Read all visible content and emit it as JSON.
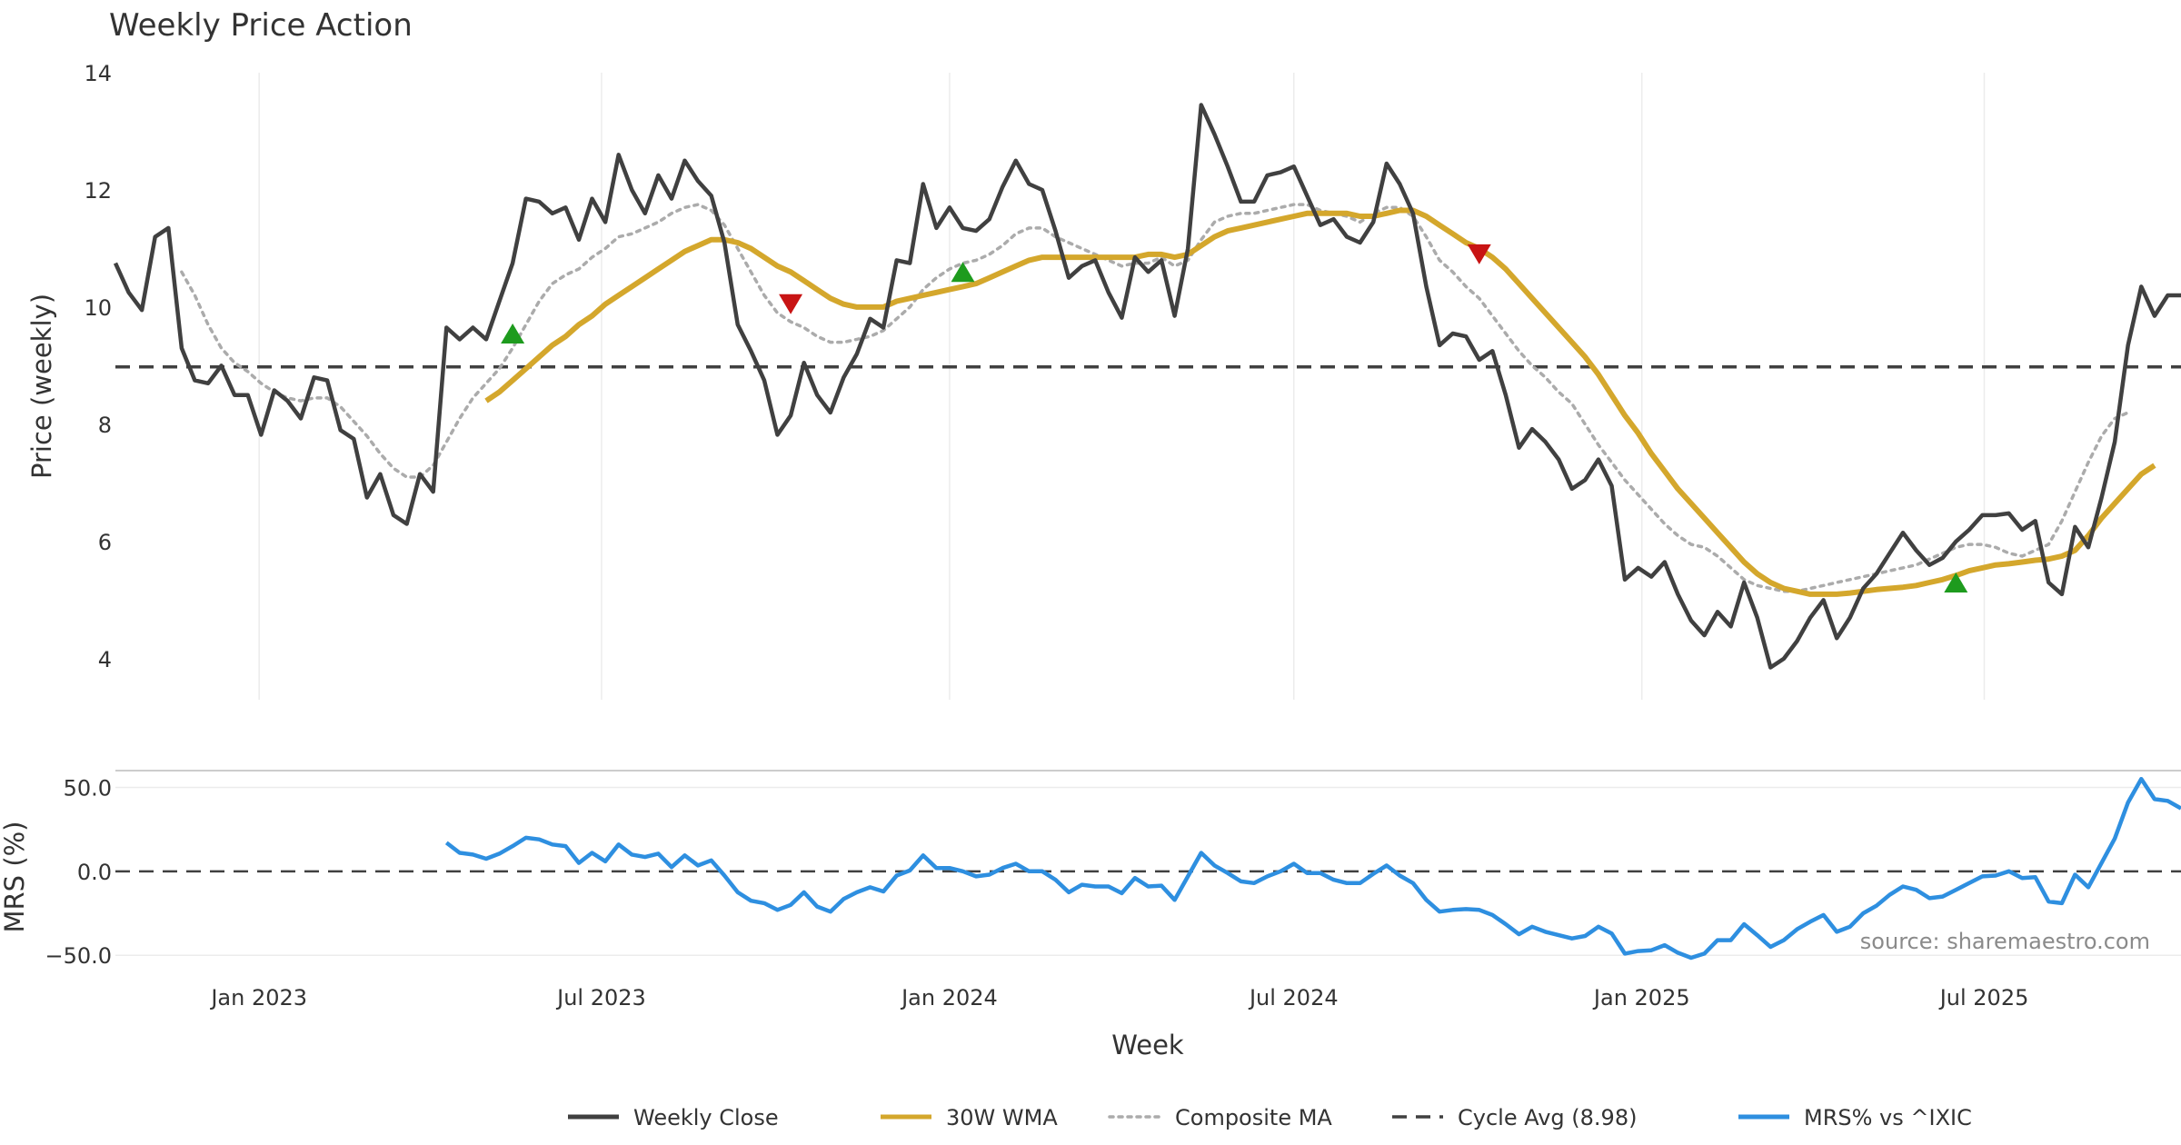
{
  "chart_data": {
    "type": "line",
    "title": "Weekly Price Action",
    "source": "source: sharemaestro.com",
    "xlabel": "Week",
    "x_ticks": [
      "Jan 2023",
      "Jul 2023",
      "Jan 2024",
      "Jul 2024",
      "Jan 2025",
      "Jul 2025"
    ],
    "x_range": [
      "2022-10-17",
      "2025-10-13"
    ],
    "price_panel": {
      "ylabel": "Price (weekly)",
      "ylim": [
        3.3,
        14
      ],
      "y_ticks": [
        4,
        6,
        8,
        10,
        12,
        14
      ],
      "cycle_avg": 8.98
    },
    "mrs_panel": {
      "ylabel": "MRS (%)",
      "ylim": [
        -58,
        60
      ],
      "y_ticks": [
        50,
        0,
        -50
      ],
      "y_tick_labels": [
        "50.0",
        "0.0",
        "−50.0"
      ]
    },
    "legend": [
      {
        "label": "Weekly Close",
        "color": "#404040",
        "style": "solid"
      },
      {
        "label": "30W WMA",
        "color": "#d4a72c",
        "style": "solid"
      },
      {
        "label": "Composite MA",
        "color": "#ababab",
        "style": "dotted"
      },
      {
        "label": "Cycle Avg (8.98)",
        "color": "#404040",
        "style": "dashed"
      },
      {
        "label": "MRS% vs ^IXIC",
        "color": "#2e8fe0",
        "style": "solid"
      }
    ],
    "series": [
      {
        "name": "Weekly Close",
        "values": [
          10.75,
          10.25,
          9.95,
          11.2,
          11.35,
          9.3,
          8.75,
          8.7,
          9.0,
          8.5,
          8.5,
          7.82,
          8.58,
          8.4,
          8.1,
          8.8,
          8.75,
          7.9,
          7.75,
          6.75,
          7.15,
          6.45,
          6.3,
          7.15,
          6.85,
          9.65,
          9.45,
          9.65,
          9.45,
          10.1,
          10.75,
          11.85,
          11.8,
          11.6,
          11.7,
          11.15,
          11.85,
          11.45,
          12.6,
          12.0,
          11.6,
          12.25,
          11.85,
          12.5,
          12.15,
          11.9,
          11.1,
          9.7,
          9.25,
          8.75,
          7.82,
          8.15,
          9.05,
          8.5,
          8.2,
          8.8,
          9.2,
          9.8,
          9.65,
          10.8,
          10.75,
          12.1,
          11.35,
          11.7,
          11.35,
          11.3,
          11.5,
          12.05,
          12.5,
          12.1,
          12.0,
          11.3,
          10.5,
          10.7,
          10.8,
          10.25,
          9.82,
          10.85,
          10.6,
          10.8,
          9.85,
          11.0,
          13.45,
          12.95,
          12.4,
          11.8,
          11.8,
          12.25,
          12.3,
          12.4,
          11.9,
          11.4,
          11.5,
          11.2,
          11.1,
          11.45,
          12.45,
          12.1,
          11.6,
          10.35,
          9.35,
          9.55,
          9.5,
          9.1,
          9.25,
          8.5,
          7.6,
          7.92,
          7.7,
          7.4,
          6.9,
          7.05,
          7.4,
          6.95,
          5.35,
          5.55,
          5.4,
          5.65,
          5.1,
          4.65,
          4.4,
          4.8,
          4.55,
          5.3,
          4.7,
          3.85,
          4.0,
          4.3,
          4.7,
          5.0,
          4.35,
          4.7,
          5.2,
          5.45,
          5.8,
          6.15,
          5.85,
          5.6,
          5.72,
          6.0,
          6.2,
          6.45,
          6.45,
          6.48,
          6.2,
          6.35,
          5.3,
          5.1,
          6.25,
          5.9,
          6.75,
          7.7,
          9.35,
          10.35,
          9.85,
          10.2,
          10.2
        ]
      },
      {
        "name": "Composite MA",
        "values": [
          null,
          null,
          null,
          null,
          null,
          10.6,
          10.2,
          9.7,
          9.3,
          9.05,
          8.9,
          8.7,
          8.55,
          8.45,
          8.4,
          8.45,
          8.45,
          8.3,
          8.05,
          7.8,
          7.5,
          7.25,
          7.1,
          7.1,
          7.3,
          7.7,
          8.1,
          8.45,
          8.7,
          8.95,
          9.3,
          9.7,
          10.1,
          10.4,
          10.55,
          10.65,
          10.85,
          11.0,
          11.2,
          11.25,
          11.35,
          11.45,
          11.6,
          11.7,
          11.75,
          11.65,
          11.4,
          11.0,
          10.6,
          10.2,
          9.9,
          9.75,
          9.65,
          9.5,
          9.4,
          9.4,
          9.45,
          9.5,
          9.6,
          9.8,
          10.0,
          10.3,
          10.5,
          10.65,
          10.75,
          10.8,
          10.9,
          11.05,
          11.25,
          11.35,
          11.35,
          11.2,
          11.1,
          11.0,
          10.9,
          10.8,
          10.7,
          10.75,
          10.75,
          10.85,
          10.7,
          10.8,
          11.15,
          11.45,
          11.55,
          11.6,
          11.6,
          11.65,
          11.7,
          11.75,
          11.75,
          11.65,
          11.6,
          11.55,
          11.45,
          11.6,
          11.7,
          11.7,
          11.55,
          11.2,
          10.8,
          10.6,
          10.35,
          10.15,
          9.85,
          9.55,
          9.25,
          9.0,
          8.8,
          8.55,
          8.35,
          8.0,
          7.65,
          7.35,
          7.05,
          6.8,
          6.55,
          6.3,
          6.1,
          5.95,
          5.9,
          5.75,
          5.55,
          5.35,
          5.25,
          5.2,
          5.15,
          5.15,
          5.2,
          5.25,
          5.3,
          5.35,
          5.4,
          5.45,
          5.5,
          5.55,
          5.6,
          5.7,
          5.8,
          5.9,
          5.95,
          5.95,
          5.9,
          5.8,
          5.75,
          5.85,
          5.95,
          6.35,
          6.85,
          7.35,
          7.8,
          8.1,
          8.2
        ]
      },
      {
        "name": "30W WMA",
        "values": [
          null,
          null,
          null,
          null,
          null,
          null,
          null,
          null,
          null,
          null,
          null,
          null,
          null,
          null,
          null,
          null,
          null,
          null,
          null,
          null,
          null,
          null,
          null,
          null,
          null,
          null,
          null,
          null,
          8.4,
          8.55,
          8.75,
          8.95,
          9.15,
          9.35,
          9.5,
          9.7,
          9.85,
          10.05,
          10.2,
          10.35,
          10.5,
          10.65,
          10.8,
          10.95,
          11.05,
          11.15,
          11.15,
          11.1,
          11.0,
          10.85,
          10.7,
          10.6,
          10.45,
          10.3,
          10.15,
          10.05,
          10.0,
          10.0,
          10.0,
          10.1,
          10.15,
          10.2,
          10.25,
          10.3,
          10.35,
          10.4,
          10.5,
          10.6,
          10.7,
          10.8,
          10.85,
          10.85,
          10.85,
          10.85,
          10.85,
          10.85,
          10.85,
          10.85,
          10.9,
          10.9,
          10.85,
          10.9,
          11.05,
          11.2,
          11.3,
          11.35,
          11.4,
          11.45,
          11.5,
          11.55,
          11.6,
          11.6,
          11.6,
          11.6,
          11.55,
          11.55,
          11.6,
          11.65,
          11.65,
          11.55,
          11.4,
          11.25,
          11.1,
          11.0,
          10.85,
          10.65,
          10.4,
          10.15,
          9.9,
          9.65,
          9.4,
          9.15,
          8.85,
          8.5,
          8.15,
          7.85,
          7.5,
          7.2,
          6.9,
          6.65,
          6.4,
          6.15,
          5.9,
          5.65,
          5.45,
          5.3,
          5.2,
          5.15,
          5.1,
          5.1,
          5.1,
          5.12,
          5.15,
          5.18,
          5.2,
          5.22,
          5.25,
          5.3,
          5.35,
          5.42,
          5.5,
          5.55,
          5.6,
          5.62,
          5.65,
          5.68,
          5.7,
          5.75,
          5.85,
          6.1,
          6.4,
          6.65,
          6.9,
          7.15,
          7.3
        ]
      },
      {
        "name": "MRS% vs ^IXIC",
        "values": [
          null,
          null,
          null,
          null,
          null,
          null,
          null,
          null,
          null,
          null,
          null,
          null,
          null,
          null,
          null,
          null,
          null,
          null,
          null,
          null,
          null,
          null,
          null,
          null,
          null,
          17,
          11,
          10,
          7.5,
          10.5,
          15,
          20,
          19,
          16,
          15,
          5,
          11,
          6,
          16,
          10,
          8.5,
          10.5,
          2.5,
          9.5,
          3.5,
          6.5,
          -2.5,
          -12.5,
          -17.5,
          -19,
          -23,
          -20,
          -12.5,
          -21,
          -24,
          -16.5,
          -12.5,
          -9.5,
          -12,
          -2.5,
          0.5,
          9.5,
          2,
          2,
          0,
          -3,
          -2,
          2,
          4.5,
          0,
          0,
          -5,
          -12.5,
          -8,
          -9,
          -9,
          -13,
          -4,
          -9,
          -8.5,
          -17,
          -3,
          11,
          3.5,
          -1,
          -6,
          -7,
          -3,
          0,
          4.5,
          -1,
          -1,
          -5,
          -7,
          -7,
          -1.5,
          3.5,
          -2.5,
          -7,
          -17,
          -24,
          -23,
          -22.5,
          -23,
          -26,
          -31.5,
          -37.5,
          -33,
          -36,
          -38,
          -40,
          -38.5,
          -33,
          -37,
          -49,
          -47.5,
          -47,
          -44,
          -48.5,
          -51.5,
          -49,
          -41,
          -41,
          -31.5,
          -38,
          -45,
          -41,
          -34.5,
          -30,
          -26,
          -36,
          -33,
          -25,
          -20.5,
          -14,
          -9,
          -11,
          -16,
          -15,
          -11,
          -7,
          -3,
          -2.5,
          0,
          -4,
          -3.5,
          -18,
          -19,
          -2,
          -9.5,
          5,
          19.5,
          41,
          55,
          43,
          42,
          37.5
        ]
      }
    ],
    "signals": [
      {
        "type": "up",
        "x_index": 30,
        "value": 9.55
      },
      {
        "type": "down",
        "x_index": 51,
        "value": 10.05
      },
      {
        "type": "up",
        "x_index": 64,
        "value": 10.6
      },
      {
        "type": "down",
        "x_index": 103,
        "value": 10.9
      },
      {
        "type": "up",
        "x_index": 139,
        "value": 5.3
      }
    ]
  }
}
